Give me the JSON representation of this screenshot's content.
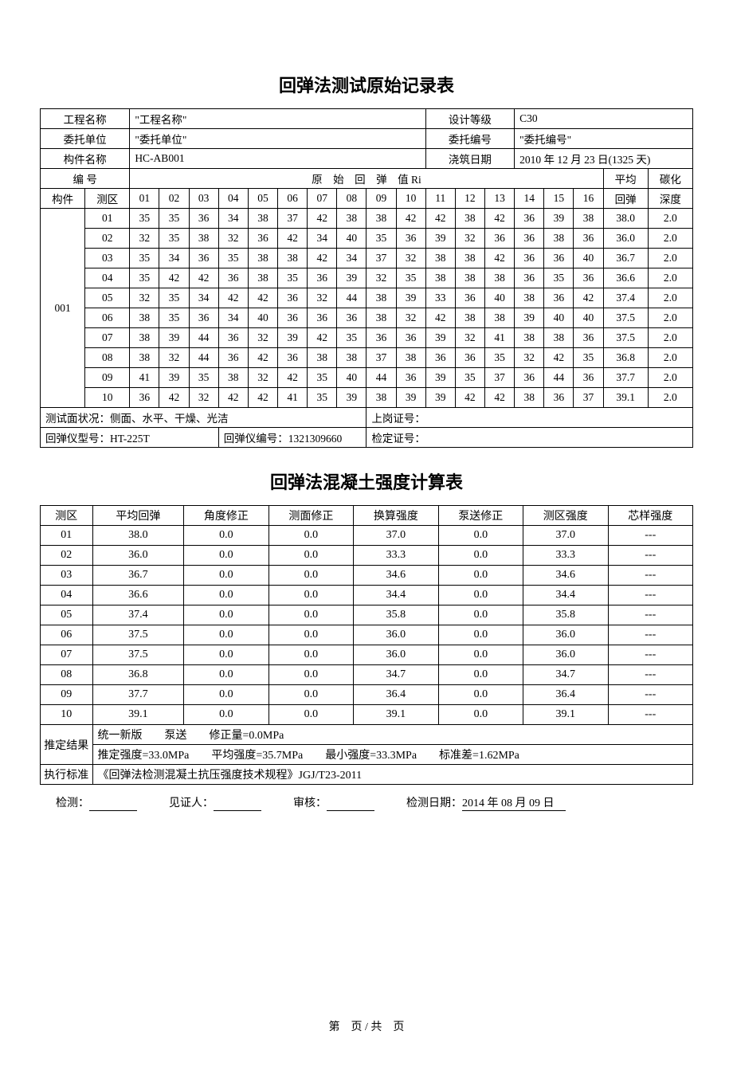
{
  "title1": "回弹法测试原始记录表",
  "header": {
    "project_name_label": "工程名称",
    "project_name": "\"工程名称\"",
    "design_grade_label": "设计等级",
    "design_grade": "C30",
    "consign_unit_label": "委托单位",
    "consign_unit": "\"委托单位\"",
    "consign_no_label": "委托编号",
    "consign_no": "\"委托编号\"",
    "component_name_label": "构件名称",
    "component_name": "HC-AB001",
    "pour_date_label": "浇筑日期",
    "pour_date": "2010 年 12 月 23 日(1325 天)"
  },
  "col_labels": {
    "bianhao": "编 号",
    "yuanshi": "原　始　回　弹　值 Ri",
    "pingjun": "平均",
    "tanhua": "碳化",
    "goujian": "构件",
    "cequ": "测区",
    "huitan": "回弹",
    "shendu": "深度",
    "cols": [
      "01",
      "02",
      "03",
      "04",
      "05",
      "06",
      "07",
      "08",
      "09",
      "10",
      "11",
      "12",
      "13",
      "14",
      "15",
      "16"
    ]
  },
  "comp_id": "001",
  "rows": [
    {
      "zone": "01",
      "v": [
        35,
        35,
        36,
        34,
        38,
        37,
        42,
        38,
        38,
        42,
        42,
        38,
        42,
        36,
        39,
        38
      ],
      "avg": "38.0",
      "depth": "2.0"
    },
    {
      "zone": "02",
      "v": [
        32,
        35,
        38,
        32,
        36,
        42,
        34,
        40,
        35,
        36,
        39,
        32,
        36,
        36,
        38,
        36
      ],
      "avg": "36.0",
      "depth": "2.0"
    },
    {
      "zone": "03",
      "v": [
        35,
        34,
        36,
        35,
        38,
        38,
        42,
        34,
        37,
        32,
        38,
        38,
        42,
        36,
        36,
        40
      ],
      "avg": "36.7",
      "depth": "2.0"
    },
    {
      "zone": "04",
      "v": [
        35,
        42,
        42,
        36,
        38,
        35,
        36,
        39,
        32,
        35,
        38,
        38,
        38,
        36,
        35,
        36
      ],
      "avg": "36.6",
      "depth": "2.0"
    },
    {
      "zone": "05",
      "v": [
        32,
        35,
        34,
        42,
        42,
        36,
        32,
        44,
        38,
        39,
        33,
        36,
        40,
        38,
        36,
        42
      ],
      "avg": "37.4",
      "depth": "2.0"
    },
    {
      "zone": "06",
      "v": [
        38,
        35,
        36,
        34,
        40,
        36,
        36,
        36,
        38,
        32,
        42,
        38,
        38,
        39,
        40,
        40
      ],
      "avg": "37.5",
      "depth": "2.0"
    },
    {
      "zone": "07",
      "v": [
        38,
        39,
        44,
        36,
        32,
        39,
        42,
        35,
        36,
        36,
        39,
        32,
        41,
        38,
        38,
        36
      ],
      "avg": "37.5",
      "depth": "2.0"
    },
    {
      "zone": "08",
      "v": [
        38,
        32,
        44,
        36,
        42,
        36,
        38,
        38,
        37,
        38,
        36,
        36,
        35,
        32,
        42,
        35
      ],
      "avg": "36.8",
      "depth": "2.0"
    },
    {
      "zone": "09",
      "v": [
        41,
        39,
        35,
        38,
        32,
        42,
        35,
        40,
        44,
        36,
        39,
        35,
        37,
        36,
        44,
        36
      ],
      "avg": "37.7",
      "depth": "2.0"
    },
    {
      "zone": "10",
      "v": [
        36,
        42,
        32,
        42,
        42,
        41,
        35,
        39,
        38,
        39,
        39,
        42,
        42,
        38,
        36,
        37
      ],
      "avg": "39.1",
      "depth": "2.0"
    }
  ],
  "footer1": {
    "surface": "测试面状况：侧面、水平、干燥、光洁",
    "badge": "上岗证号：",
    "model": "回弹仪型号：HT-225T",
    "serial": "回弹仪编号：1321309660",
    "cert": "检定证号："
  },
  "title2": "回弹法混凝土强度计算表",
  "t2_cols": [
    "测区",
    "平均回弹",
    "角度修正",
    "测面修正",
    "换算强度",
    "泵送修正",
    "测区强度",
    "芯样强度"
  ],
  "t2_rows": [
    [
      "01",
      "38.0",
      "0.0",
      "0.0",
      "37.0",
      "0.0",
      "37.0",
      "---"
    ],
    [
      "02",
      "36.0",
      "0.0",
      "0.0",
      "33.3",
      "0.0",
      "33.3",
      "---"
    ],
    [
      "03",
      "36.7",
      "0.0",
      "0.0",
      "34.6",
      "0.0",
      "34.6",
      "---"
    ],
    [
      "04",
      "36.6",
      "0.0",
      "0.0",
      "34.4",
      "0.0",
      "34.4",
      "---"
    ],
    [
      "05",
      "37.4",
      "0.0",
      "0.0",
      "35.8",
      "0.0",
      "35.8",
      "---"
    ],
    [
      "06",
      "37.5",
      "0.0",
      "0.0",
      "36.0",
      "0.0",
      "36.0",
      "---"
    ],
    [
      "07",
      "37.5",
      "0.0",
      "0.0",
      "36.0",
      "0.0",
      "36.0",
      "---"
    ],
    [
      "08",
      "36.8",
      "0.0",
      "0.0",
      "34.7",
      "0.0",
      "34.7",
      "---"
    ],
    [
      "09",
      "37.7",
      "0.0",
      "0.0",
      "36.4",
      "0.0",
      "36.4",
      "---"
    ],
    [
      "10",
      "39.1",
      "0.0",
      "0.0",
      "39.1",
      "0.0",
      "39.1",
      "---"
    ]
  ],
  "result": {
    "label": "推定结果",
    "line1": "统一新版　　泵送　　修正量=0.0MPa",
    "line2": "推定强度=33.0MPa　　平均强度=35.7MPa　　最小强度=33.3MPa　　标准差=1.62MPa",
    "std_label": "执行标准",
    "std": "《回弹法检测混凝土抗压强度技术规程》JGJ/T23-2011"
  },
  "signatures": {
    "jiance": "检测：",
    "jianzhen": "见证人：",
    "shenhe": "审核：",
    "date_label": "检测日期：",
    "date": "2014 年 08 月 09 日"
  },
  "page_footer": "第　页 / 共　页"
}
